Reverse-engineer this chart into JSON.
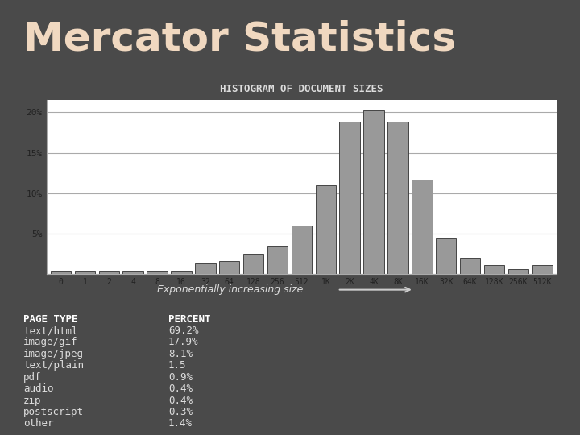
{
  "title": "Mercator Statistics",
  "subtitle": "HISTOGRAM OF DOCUMENT SIZES",
  "bar_labels": [
    "0",
    "1",
    "2",
    "4",
    "8",
    "16",
    "32",
    "64",
    "128",
    "256",
    "512",
    "1K",
    "2K",
    "4K",
    "8K",
    "16K",
    "32K",
    "64K",
    "128K",
    "256K",
    "512K"
  ],
  "bar_values": [
    0.3,
    0.3,
    0.3,
    0.3,
    0.3,
    0.3,
    1.3,
    1.6,
    2.5,
    3.5,
    6.0,
    11.0,
    18.8,
    20.2,
    18.8,
    11.7,
    4.4,
    2.0,
    1.1,
    0.6,
    1.1
  ],
  "bar_color": "#999999",
  "bar_edge_color": "#444444",
  "background_color": "#4a4a4a",
  "chart_bg": "#ffffff",
  "title_color": "#f0d8c0",
  "subtitle_color": "#dddddd",
  "yticks": [
    0,
    5,
    10,
    15,
    20
  ],
  "ytick_labels": [
    "",
    "5%",
    "10%",
    "15%",
    "20%"
  ],
  "ylim": [
    0,
    21.5
  ],
  "table_data": [
    [
      "PAGE TYPE",
      "PERCENT"
    ],
    [
      "text/html",
      "69.2%"
    ],
    [
      "image/gif",
      "17.9%"
    ],
    [
      "image/jpeg",
      "8.1%"
    ],
    [
      "text/plain",
      "1.5"
    ],
    [
      "pdf",
      "0.9%"
    ],
    [
      "audio",
      "0.4%"
    ],
    [
      "zip",
      "0.4%"
    ],
    [
      "postscript",
      "0.3%"
    ],
    [
      "other",
      "1.4%"
    ]
  ],
  "table_color": "#dddddd",
  "arrow_label": "Exponentially increasing size"
}
